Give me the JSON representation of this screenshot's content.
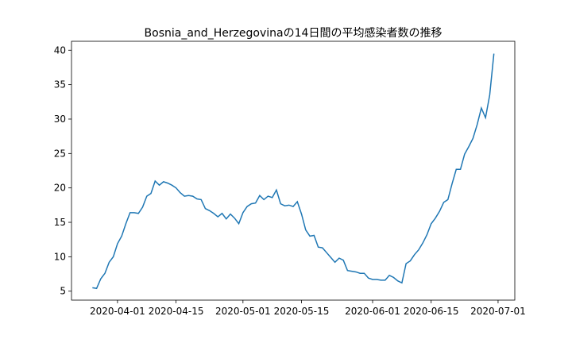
{
  "chart_data": {
    "type": "line",
    "title": "Bosnia_and_Herzegovinaの14日間の平均感染者数の推移",
    "x": [
      "2020-03-26",
      "2020-03-27",
      "2020-03-28",
      "2020-03-29",
      "2020-03-30",
      "2020-03-31",
      "2020-04-01",
      "2020-04-02",
      "2020-04-03",
      "2020-04-04",
      "2020-04-05",
      "2020-04-06",
      "2020-04-07",
      "2020-04-08",
      "2020-04-09",
      "2020-04-10",
      "2020-04-11",
      "2020-04-12",
      "2020-04-13",
      "2020-04-14",
      "2020-04-15",
      "2020-04-16",
      "2020-04-17",
      "2020-04-18",
      "2020-04-19",
      "2020-04-20",
      "2020-04-21",
      "2020-04-22",
      "2020-04-23",
      "2020-04-24",
      "2020-04-25",
      "2020-04-26",
      "2020-04-27",
      "2020-04-28",
      "2020-04-29",
      "2020-04-30",
      "2020-05-01",
      "2020-05-02",
      "2020-05-03",
      "2020-05-04",
      "2020-05-05",
      "2020-05-06",
      "2020-05-07",
      "2020-05-08",
      "2020-05-09",
      "2020-05-10",
      "2020-05-11",
      "2020-05-12",
      "2020-05-13",
      "2020-05-14",
      "2020-05-15",
      "2020-05-16",
      "2020-05-17",
      "2020-05-18",
      "2020-05-19",
      "2020-05-20",
      "2020-05-21",
      "2020-05-22",
      "2020-05-23",
      "2020-05-24",
      "2020-05-25",
      "2020-05-26",
      "2020-05-27",
      "2020-05-28",
      "2020-05-29",
      "2020-05-30",
      "2020-05-31",
      "2020-06-01",
      "2020-06-02",
      "2020-06-03",
      "2020-06-04",
      "2020-06-05",
      "2020-06-06",
      "2020-06-07",
      "2020-06-08",
      "2020-06-09",
      "2020-06-10",
      "2020-06-11",
      "2020-06-12",
      "2020-06-13",
      "2020-06-14",
      "2020-06-15",
      "2020-06-16",
      "2020-06-17",
      "2020-06-18",
      "2020-06-19",
      "2020-06-20",
      "2020-06-21",
      "2020-06-22",
      "2020-06-23",
      "2020-06-24",
      "2020-06-25",
      "2020-06-26",
      "2020-06-27",
      "2020-06-28",
      "2020-06-29",
      "2020-06-30"
    ],
    "series": [
      {
        "color": "#1f77b4",
        "values": [
          5.5,
          5.4,
          6.8,
          7.6,
          9.2,
          10.0,
          11.9,
          13.0,
          14.8,
          16.4,
          16.4,
          16.3,
          17.2,
          18.8,
          19.2,
          21.0,
          20.4,
          20.9,
          20.7,
          20.4,
          20.0,
          19.3,
          18.8,
          18.9,
          18.8,
          18.4,
          18.3,
          17.0,
          16.7,
          16.3,
          15.8,
          16.3,
          15.5,
          16.2,
          15.6,
          14.8,
          16.4,
          17.3,
          17.7,
          17.8,
          18.9,
          18.3,
          18.8,
          18.6,
          19.7,
          17.7,
          17.4,
          17.5,
          17.3,
          18.0,
          16.2,
          13.9,
          13.0,
          13.1,
          11.4,
          11.3,
          10.6,
          9.9,
          9.2,
          9.8,
          9.5,
          8.0,
          7.9,
          7.8,
          7.6,
          7.6,
          6.9,
          6.7,
          6.7,
          6.6,
          6.6,
          7.3,
          7.0,
          6.5,
          6.2,
          9.0,
          9.4,
          10.3,
          11.0,
          12.0,
          13.2,
          14.8,
          15.6,
          16.6,
          17.9,
          18.3,
          20.6,
          22.7,
          22.7,
          24.9,
          26.0,
          27.2,
          29.2,
          31.6,
          30.2,
          33.5,
          39.5
        ]
      }
    ],
    "xlim": [
      "2020-03-21",
      "2020-07-05"
    ],
    "xticks": [
      "2020-04-01",
      "2020-04-15",
      "2020-05-01",
      "2020-05-15",
      "2020-06-01",
      "2020-06-15",
      "2020-07-01"
    ],
    "ylim": [
      3.7,
      41.3
    ],
    "yticks": [
      5,
      10,
      15,
      20,
      25,
      30,
      35,
      40
    ]
  }
}
